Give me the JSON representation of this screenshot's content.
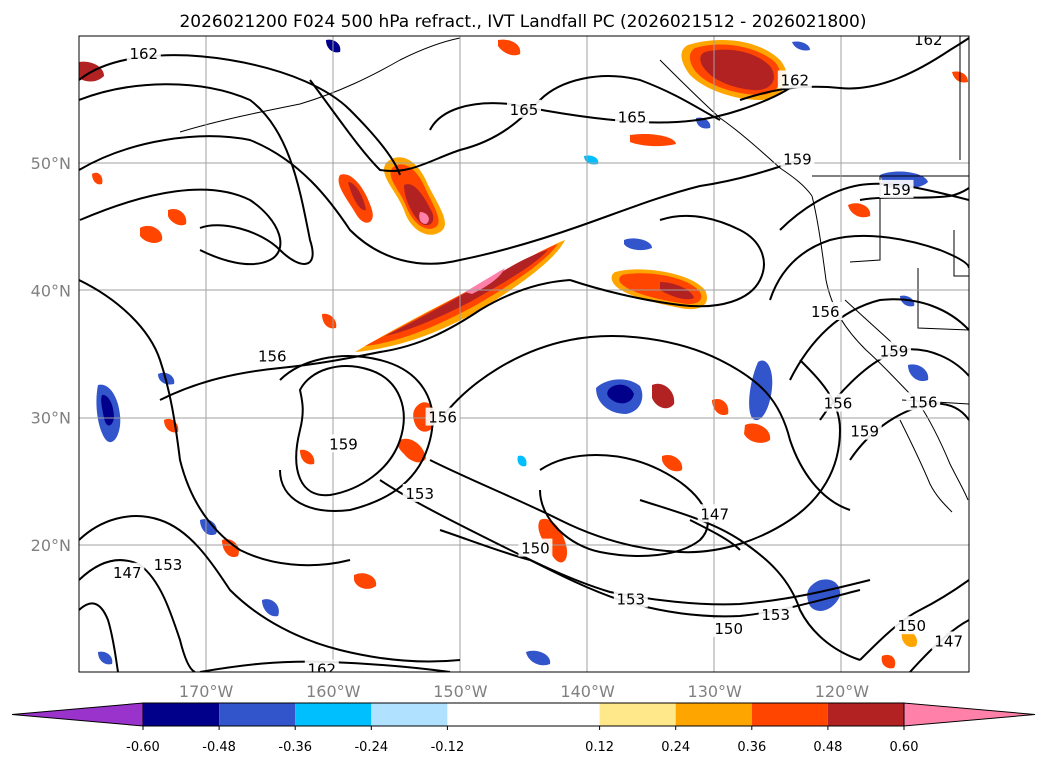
{
  "chart_data": {
    "type": "heatmap",
    "title": "2026021200 F024 500 hPa refract., IVT Landfall PC (2026021512 - 2026021800)",
    "grid": true,
    "lon_range": [
      -180,
      -110
    ],
    "lat_range": [
      10,
      60
    ],
    "x_ticks": [
      "170°W",
      "160°W",
      "150°W",
      "140°W",
      "130°W",
      "120°W"
    ],
    "y_ticks": [
      "50°N",
      "40°N",
      "30°N",
      "20°N"
    ],
    "colorbar": {
      "extend": "both",
      "ticks": [
        "-0.60",
        "-0.48",
        "-0.36",
        "-0.24",
        "-0.12",
        "0.12",
        "0.24",
        "0.36",
        "0.48",
        "0.60"
      ],
      "colors": [
        "#9933cc",
        "#00008b",
        "#3355cc",
        "#00bfff",
        "#b0e2ff",
        "#ffffff",
        "#ffe88a",
        "#ffa500",
        "#ff4500",
        "#b22222",
        "#ff80a8"
      ]
    },
    "contour_labels": [
      {
        "text": "162",
        "lon": -174.9,
        "lat": 58.6
      },
      {
        "text": "165",
        "lon": -145.0,
        "lat": 54.2
      },
      {
        "text": "165",
        "lon": -136.5,
        "lat": 53.6
      },
      {
        "text": "162",
        "lon": -113.2,
        "lat": 59.7
      },
      {
        "text": "162",
        "lon": -123.7,
        "lat": 56.5
      },
      {
        "text": "159",
        "lon": -123.5,
        "lat": 50.3
      },
      {
        "text": "159",
        "lon": -115.7,
        "lat": 47.9
      },
      {
        "text": "156",
        "lon": -164.8,
        "lat": 34.8
      },
      {
        "text": "156",
        "lon": -151.4,
        "lat": 30.0
      },
      {
        "text": "159",
        "lon": -159.2,
        "lat": 27.9
      },
      {
        "text": "156",
        "lon": -121.3,
        "lat": 38.3
      },
      {
        "text": "159",
        "lon": -115.9,
        "lat": 35.2
      },
      {
        "text": "156",
        "lon": -120.3,
        "lat": 31.1
      },
      {
        "text": "159",
        "lon": -118.2,
        "lat": 28.9
      },
      {
        "text": "156",
        "lon": -113.6,
        "lat": 31.2
      },
      {
        "text": "153",
        "lon": -153.2,
        "lat": 24.0
      },
      {
        "text": "153",
        "lon": -173.0,
        "lat": 18.4
      },
      {
        "text": "150",
        "lon": -144.1,
        "lat": 19.7
      },
      {
        "text": "147",
        "lon": -176.2,
        "lat": 17.8
      },
      {
        "text": "147",
        "lon": -130.0,
        "lat": 22.4
      },
      {
        "text": "153",
        "lon": -136.6,
        "lat": 15.7
      },
      {
        "text": "153",
        "lon": -125.2,
        "lat": 14.5
      },
      {
        "text": "150",
        "lon": -128.9,
        "lat": 13.4
      },
      {
        "text": "150",
        "lon": -114.5,
        "lat": 13.6
      },
      {
        "text": "147",
        "lon": -111.6,
        "lat": 12.4
      },
      {
        "text": "162",
        "lon": -160.9,
        "lat": 10.2
      }
    ]
  }
}
